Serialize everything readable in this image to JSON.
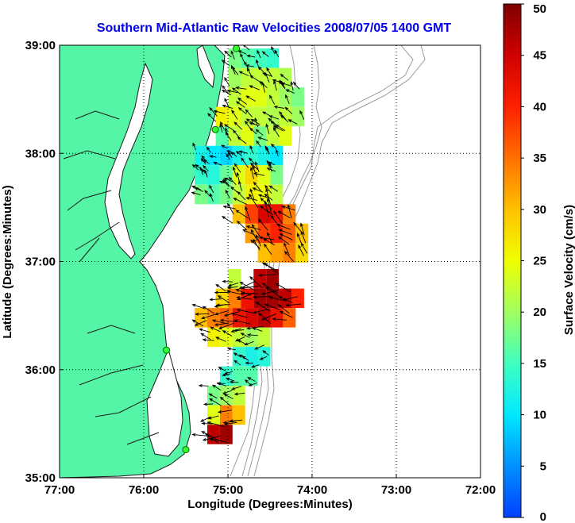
{
  "chart_data": {
    "type": "heatmap",
    "title": "Southern Mid-Atlantic Raw Velocities 2008/07/05 1400 GMT",
    "xlabel": "Longitude (Degrees:Minutes)",
    "ylabel": "Latitude (Degrees:Minutes)",
    "colorbar_label": "Surface Velocity (cm/s)",
    "x_ticks": [
      {
        "value": -77,
        "label": "77:00"
      },
      {
        "value": -76,
        "label": "76:00"
      },
      {
        "value": -75,
        "label": "75:00"
      },
      {
        "value": -74,
        "label": "74:00"
      },
      {
        "value": -73,
        "label": "73:00"
      },
      {
        "value": -72,
        "label": "72:00"
      }
    ],
    "y_ticks": [
      {
        "value": 35,
        "label": "35:00"
      },
      {
        "value": 36,
        "label": "36:00"
      },
      {
        "value": 37,
        "label": "37:00"
      },
      {
        "value": 38,
        "label": "38:00"
      },
      {
        "value": 39,
        "label": "39:00"
      }
    ],
    "xlim": [
      -77,
      -72
    ],
    "ylim": [
      35,
      39
    ],
    "colorbar_ticks": [
      0,
      5,
      10,
      15,
      20,
      25,
      30,
      35,
      40,
      45,
      50
    ],
    "clim": [
      0,
      50
    ],
    "grid": "dotted",
    "colorbar_position": "right",
    "land_color": "#55f5a8",
    "cells": [
      {
        "lon": -74.92,
        "lat": 38.88,
        "speed": 18
      },
      {
        "lon": -74.77,
        "lat": 38.88,
        "speed": 16
      },
      {
        "lon": -74.62,
        "lat": 38.88,
        "speed": 15
      },
      {
        "lon": -74.47,
        "lat": 38.88,
        "speed": 14
      },
      {
        "lon": -74.92,
        "lat": 38.7,
        "speed": 20
      },
      {
        "lon": -74.77,
        "lat": 38.7,
        "speed": 22
      },
      {
        "lon": -74.62,
        "lat": 38.7,
        "speed": 22
      },
      {
        "lon": -74.47,
        "lat": 38.7,
        "speed": 22
      },
      {
        "lon": -74.32,
        "lat": 38.7,
        "speed": 21
      },
      {
        "lon": -74.92,
        "lat": 38.52,
        "speed": 22
      },
      {
        "lon": -74.77,
        "lat": 38.52,
        "speed": 24
      },
      {
        "lon": -74.62,
        "lat": 38.52,
        "speed": 24
      },
      {
        "lon": -74.47,
        "lat": 38.52,
        "speed": 22
      },
      {
        "lon": -74.32,
        "lat": 38.52,
        "speed": 20
      },
      {
        "lon": -74.17,
        "lat": 38.52,
        "speed": 18
      },
      {
        "lon": -75.07,
        "lat": 38.34,
        "speed": 26
      },
      {
        "lon": -74.92,
        "lat": 38.34,
        "speed": 24
      },
      {
        "lon": -74.77,
        "lat": 38.34,
        "speed": 22
      },
      {
        "lon": -74.62,
        "lat": 38.34,
        "speed": 22
      },
      {
        "lon": -74.47,
        "lat": 38.34,
        "speed": 21
      },
      {
        "lon": -74.32,
        "lat": 38.34,
        "speed": 22
      },
      {
        "lon": -74.17,
        "lat": 38.34,
        "speed": 20
      },
      {
        "lon": -75.07,
        "lat": 38.16,
        "speed": 16
      },
      {
        "lon": -74.92,
        "lat": 38.16,
        "speed": 22
      },
      {
        "lon": -74.77,
        "lat": 38.16,
        "speed": 24
      },
      {
        "lon": -74.62,
        "lat": 38.16,
        "speed": 18
      },
      {
        "lon": -74.47,
        "lat": 38.16,
        "speed": 22
      },
      {
        "lon": -74.32,
        "lat": 38.16,
        "speed": 24
      },
      {
        "lon": -75.32,
        "lat": 37.98,
        "speed": 12
      },
      {
        "lon": -75.17,
        "lat": 37.98,
        "speed": 10
      },
      {
        "lon": -75.02,
        "lat": 37.98,
        "speed": 9
      },
      {
        "lon": -74.87,
        "lat": 37.98,
        "speed": 12
      },
      {
        "lon": -74.72,
        "lat": 37.98,
        "speed": 14
      },
      {
        "lon": -74.57,
        "lat": 37.98,
        "speed": 12
      },
      {
        "lon": -74.42,
        "lat": 37.98,
        "speed": 10
      },
      {
        "lon": -75.32,
        "lat": 37.8,
        "speed": 14
      },
      {
        "lon": -75.17,
        "lat": 37.8,
        "speed": 13
      },
      {
        "lon": -75.02,
        "lat": 37.8,
        "speed": 17
      },
      {
        "lon": -74.87,
        "lat": 37.8,
        "speed": 24
      },
      {
        "lon": -74.72,
        "lat": 37.8,
        "speed": 28
      },
      {
        "lon": -74.57,
        "lat": 37.8,
        "speed": 24
      },
      {
        "lon": -74.42,
        "lat": 37.8,
        "speed": 18
      },
      {
        "lon": -75.32,
        "lat": 37.62,
        "speed": 18
      },
      {
        "lon": -75.17,
        "lat": 37.62,
        "speed": 16
      },
      {
        "lon": -75.02,
        "lat": 37.62,
        "speed": 18
      },
      {
        "lon": -74.87,
        "lat": 37.62,
        "speed": 22
      },
      {
        "lon": -74.72,
        "lat": 37.62,
        "speed": 26
      },
      {
        "lon": -74.57,
        "lat": 37.62,
        "speed": 25
      },
      {
        "lon": -74.42,
        "lat": 37.62,
        "speed": 22
      },
      {
        "lon": -74.87,
        "lat": 37.44,
        "speed": 30
      },
      {
        "lon": -74.72,
        "lat": 37.44,
        "speed": 38
      },
      {
        "lon": -74.57,
        "lat": 37.44,
        "speed": 44
      },
      {
        "lon": -74.42,
        "lat": 37.44,
        "speed": 42
      },
      {
        "lon": -74.27,
        "lat": 37.44,
        "speed": 34
      },
      {
        "lon": -74.72,
        "lat": 37.26,
        "speed": 32
      },
      {
        "lon": -74.57,
        "lat": 37.26,
        "speed": 38
      },
      {
        "lon": -74.42,
        "lat": 37.26,
        "speed": 40
      },
      {
        "lon": -74.27,
        "lat": 37.26,
        "speed": 36
      },
      {
        "lon": -74.12,
        "lat": 37.26,
        "speed": 30
      },
      {
        "lon": -74.57,
        "lat": 37.08,
        "speed": 30
      },
      {
        "lon": -74.42,
        "lat": 37.08,
        "speed": 32
      },
      {
        "lon": -74.27,
        "lat": 37.08,
        "speed": 34
      },
      {
        "lon": -74.12,
        "lat": 37.08,
        "speed": 28
      },
      {
        "lon": -74.92,
        "lat": 36.84,
        "speed": 22
      },
      {
        "lon": -74.62,
        "lat": 36.84,
        "speed": 46
      },
      {
        "lon": -74.47,
        "lat": 36.84,
        "speed": 48
      },
      {
        "lon": -75.07,
        "lat": 36.66,
        "speed": 28
      },
      {
        "lon": -74.92,
        "lat": 36.66,
        "speed": 34
      },
      {
        "lon": -74.77,
        "lat": 36.66,
        "speed": 42
      },
      {
        "lon": -74.62,
        "lat": 36.66,
        "speed": 48
      },
      {
        "lon": -74.47,
        "lat": 36.66,
        "speed": 48
      },
      {
        "lon": -74.32,
        "lat": 36.66,
        "speed": 46
      },
      {
        "lon": -74.17,
        "lat": 36.66,
        "speed": 40
      },
      {
        "lon": -75.32,
        "lat": 36.48,
        "speed": 30
      },
      {
        "lon": -75.17,
        "lat": 36.48,
        "speed": 34
      },
      {
        "lon": -75.02,
        "lat": 36.48,
        "speed": 36
      },
      {
        "lon": -74.87,
        "lat": 36.48,
        "speed": 42
      },
      {
        "lon": -74.72,
        "lat": 36.48,
        "speed": 44
      },
      {
        "lon": -74.57,
        "lat": 36.48,
        "speed": 46
      },
      {
        "lon": -74.42,
        "lat": 36.48,
        "speed": 42
      },
      {
        "lon": -74.27,
        "lat": 36.48,
        "speed": 36
      },
      {
        "lon": -75.17,
        "lat": 36.3,
        "speed": 26
      },
      {
        "lon": -75.02,
        "lat": 36.3,
        "speed": 24
      },
      {
        "lon": -74.87,
        "lat": 36.3,
        "speed": 22
      },
      {
        "lon": -74.72,
        "lat": 36.3,
        "speed": 20
      },
      {
        "lon": -74.57,
        "lat": 36.3,
        "speed": 22
      },
      {
        "lon": -74.87,
        "lat": 36.12,
        "speed": 14
      },
      {
        "lon": -74.72,
        "lat": 36.12,
        "speed": 12
      },
      {
        "lon": -74.57,
        "lat": 36.12,
        "speed": 13
      },
      {
        "lon": -75.02,
        "lat": 35.94,
        "speed": 14
      },
      {
        "lon": -74.87,
        "lat": 35.94,
        "speed": 16
      },
      {
        "lon": -74.72,
        "lat": 35.94,
        "speed": 16
      },
      {
        "lon": -75.17,
        "lat": 35.76,
        "speed": 18
      },
      {
        "lon": -75.02,
        "lat": 35.76,
        "speed": 20
      },
      {
        "lon": -74.87,
        "lat": 35.76,
        "speed": 22
      },
      {
        "lon": -75.17,
        "lat": 35.58,
        "speed": 24
      },
      {
        "lon": -75.02,
        "lat": 35.58,
        "speed": 34
      },
      {
        "lon": -74.87,
        "lat": 35.58,
        "speed": 30
      },
      {
        "lon": -75.17,
        "lat": 35.4,
        "speed": 46
      },
      {
        "lon": -75.02,
        "lat": 35.4,
        "speed": 48
      }
    ],
    "stations": [
      {
        "lon": -74.9,
        "lat": 38.97
      },
      {
        "lon": -75.15,
        "lat": 38.22
      },
      {
        "lon": -75.73,
        "lat": 36.18
      },
      {
        "lon": -75.5,
        "lat": 35.26
      }
    ]
  }
}
